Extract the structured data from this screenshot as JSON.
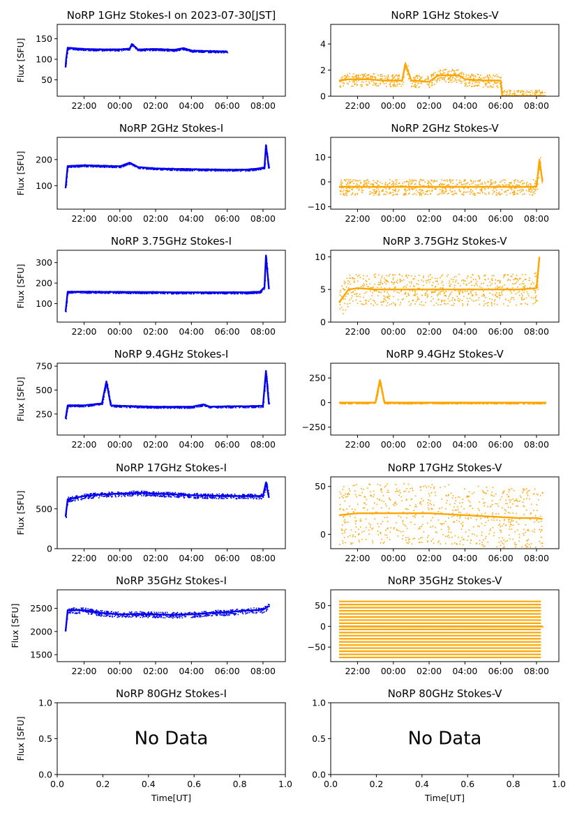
{
  "figure": {
    "x_ticks_time": [
      "22:00",
      "00:00",
      "02:00",
      "04:00",
      "06:00",
      "08:00"
    ],
    "x_ticks_nodata": [
      "0.0",
      "0.2",
      "0.4",
      "0.6",
      "0.8",
      "1.0"
    ],
    "x_label_bottom": "Time[UT]",
    "y_label_left": "Flux [SFU]",
    "no_data_text": "No Data",
    "colors": {
      "stokes_i": "#0000ee",
      "stokes_v": "#ffa500"
    }
  },
  "chart_data": [
    {
      "id": "p1-i",
      "type": "scatter",
      "title": "NoRP 1GHz Stokes-I on 2023-07-30[JST]",
      "ylabel": "Flux [SFU]",
      "yticks": [
        50,
        100,
        150
      ],
      "ylim": [
        10,
        185
      ],
      "xlim": [
        "20:30",
        "09:15"
      ],
      "color": "#0000ee",
      "series": [
        {
          "x": [
            "20:58",
            "21:00",
            "21:05",
            "21:20",
            "22:00",
            "23:00",
            "00:00",
            "00:33",
            "00:40",
            "01:00",
            "02:00",
            "03:00",
            "03:35",
            "04:00",
            "05:00",
            "06:00"
          ],
          "y": [
            80,
            100,
            128,
            127,
            125,
            124,
            124,
            126,
            137,
            124,
            125,
            123,
            127,
            121,
            120,
            119
          ]
        }
      ]
    },
    {
      "id": "p1-v",
      "type": "scatter",
      "title": "NoRP 1GHz Stokes-V",
      "ylabel": "",
      "yticks": [
        0,
        2,
        4
      ],
      "ylim": [
        0,
        5.5
      ],
      "xlim": [
        "20:30",
        "09:15"
      ],
      "color": "#ffa500",
      "series": [
        {
          "x": [
            "20:58",
            "21:30",
            "22:30",
            "23:30",
            "00:30",
            "00:40",
            "01:00",
            "02:00",
            "02:30",
            "03:00",
            "03:40",
            "04:00",
            "05:00",
            "06:00",
            "06:05",
            "08:30"
          ],
          "y": [
            1.2,
            1.3,
            1.3,
            1.2,
            1.2,
            2.5,
            1.2,
            1.1,
            1.6,
            1.6,
            1.6,
            1.3,
            1.2,
            1.2,
            0.02,
            0.02
          ]
        }
      ]
    },
    {
      "id": "p2-i",
      "type": "scatter",
      "title": "NoRP 2GHz Stokes-I",
      "ylabel": "Flux [SFU]",
      "yticks": [
        100,
        200
      ],
      "ylim": [
        10,
        285
      ],
      "xlim": [
        "20:30",
        "09:15"
      ],
      "color": "#0000ee",
      "series": [
        {
          "x": [
            "20:58",
            "21:05",
            "22:00",
            "23:00",
            "00:00",
            "00:33",
            "01:00",
            "02:00",
            "03:00",
            "04:00",
            "05:00",
            "06:00",
            "07:00",
            "07:40",
            "08:05",
            "08:10",
            "08:20"
          ],
          "y": [
            90,
            175,
            178,
            176,
            174,
            188,
            171,
            166,
            164,
            163,
            162,
            161,
            161,
            165,
            170,
            255,
            165
          ]
        }
      ]
    },
    {
      "id": "p2-v",
      "type": "scatter",
      "title": "NoRP 2GHz Stokes-V",
      "ylabel": "",
      "yticks": [
        -10,
        0,
        10
      ],
      "ylim": [
        -11,
        18
      ],
      "xlim": [
        "20:30",
        "09:15"
      ],
      "color": "#ffa500",
      "series": [
        {
          "x": [
            "20:58",
            "22:00",
            "23:00",
            "00:00",
            "01:00",
            "02:00",
            "03:00",
            "04:00",
            "05:00",
            "06:00",
            "07:00",
            "08:00",
            "08:10",
            "08:20"
          ],
          "y": [
            -2,
            -2,
            -2,
            -2,
            -2,
            -2,
            -2,
            -2,
            -2,
            -2,
            -2,
            -2,
            9,
            0
          ]
        }
      ]
    },
    {
      "id": "p3-i",
      "type": "scatter",
      "title": "NoRP 3.75GHz Stokes-I",
      "ylabel": "Flux [SFU]",
      "yticks": [
        100,
        200,
        300
      ],
      "ylim": [
        10,
        360
      ],
      "xlim": [
        "20:30",
        "09:15"
      ],
      "color": "#0000ee",
      "series": [
        {
          "x": [
            "20:58",
            "21:05",
            "22:00",
            "23:00",
            "00:00",
            "01:00",
            "02:00",
            "03:00",
            "04:00",
            "05:00",
            "06:00",
            "07:00",
            "07:50",
            "08:05",
            "08:10",
            "08:20"
          ],
          "y": [
            60,
            158,
            158,
            157,
            157,
            156,
            156,
            155,
            155,
            155,
            155,
            155,
            158,
            180,
            335,
            170
          ]
        }
      ]
    },
    {
      "id": "p3-v",
      "type": "scatter",
      "title": "NoRP 3.75GHz Stokes-V",
      "ylabel": "",
      "yticks": [
        0,
        5,
        10
      ],
      "ylim": [
        0,
        11
      ],
      "xlim": [
        "20:30",
        "09:15"
      ],
      "color": "#ffa500",
      "series": [
        {
          "x": [
            "20:58",
            "21:30",
            "22:00",
            "23:00",
            "00:00",
            "01:00",
            "02:00",
            "03:00",
            "04:00",
            "05:00",
            "06:00",
            "07:00",
            "08:00",
            "08:10"
          ],
          "y": [
            3,
            5,
            5.2,
            5,
            5,
            5,
            5,
            5,
            5,
            5,
            5,
            5,
            5.2,
            10
          ]
        }
      ]
    },
    {
      "id": "p4-i",
      "type": "scatter",
      "title": "NoRP 9.4GHz Stokes-I",
      "ylabel": "Flux [SFU]",
      "yticks": [
        250,
        500,
        750
      ],
      "ylim": [
        30,
        780
      ],
      "xlim": [
        "20:30",
        "09:15"
      ],
      "color": "#0000ee",
      "series": [
        {
          "x": [
            "20:58",
            "21:05",
            "22:00",
            "23:00",
            "23:15",
            "23:30",
            "00:00",
            "01:00",
            "02:00",
            "03:00",
            "04:00",
            "04:40",
            "05:00",
            "06:00",
            "07:00",
            "08:00",
            "08:10",
            "08:20"
          ],
          "y": [
            200,
            340,
            340,
            360,
            590,
            340,
            335,
            330,
            325,
            325,
            325,
            350,
            325,
            330,
            330,
            335,
            700,
            350
          ]
        }
      ]
    },
    {
      "id": "p4-v",
      "type": "scatter",
      "title": "NoRP 9.4GHz Stokes-V",
      "ylabel": "",
      "yticks": [
        -250,
        0,
        250
      ],
      "ylim": [
        -330,
        400
      ],
      "xlim": [
        "20:30",
        "09:15"
      ],
      "color": "#ffa500",
      "series": [
        {
          "x": [
            "20:58",
            "22:00",
            "23:00",
            "23:15",
            "23:30",
            "00:00",
            "01:00",
            "02:00",
            "03:00",
            "04:00",
            "05:00",
            "06:00",
            "07:00",
            "08:00",
            "08:30"
          ],
          "y": [
            0,
            0,
            0,
            230,
            0,
            0,
            0,
            0,
            0,
            0,
            0,
            0,
            0,
            0,
            0
          ]
        }
      ]
    },
    {
      "id": "p5-i",
      "type": "scatter",
      "title": "NoRP 17GHz Stokes-I",
      "ylabel": "Flux [SFU]",
      "yticks": [
        0,
        500
      ],
      "ylim": [
        0,
        900
      ],
      "xlim": [
        "20:30",
        "09:15"
      ],
      "color": "#0000ee",
      "series": [
        {
          "x": [
            "20:58",
            "21:05",
            "22:00",
            "23:00",
            "00:00",
            "01:00",
            "02:00",
            "03:00",
            "04:00",
            "05:00",
            "06:00",
            "07:00",
            "08:00",
            "08:10",
            "08:20"
          ],
          "y": [
            400,
            620,
            660,
            680,
            690,
            700,
            690,
            680,
            670,
            665,
            660,
            660,
            660,
            830,
            640
          ]
        }
      ]
    },
    {
      "id": "p5-v",
      "type": "scatter",
      "title": "NoRP 17GHz Stokes-V",
      "ylabel": "",
      "yticks": [
        0,
        50
      ],
      "ylim": [
        -15,
        60
      ],
      "xlim": [
        "20:30",
        "09:15"
      ],
      "color": "#ffa500",
      "series": [
        {
          "x": [
            "20:58",
            "22:00",
            "23:00",
            "00:00",
            "01:00",
            "02:00",
            "03:00",
            "04:00",
            "05:00",
            "06:00",
            "07:00",
            "08:00",
            "08:20"
          ],
          "y": [
            20,
            22,
            22,
            22,
            22,
            22,
            21,
            20,
            19,
            18,
            17,
            17,
            16
          ]
        }
      ]
    },
    {
      "id": "p6-i",
      "type": "scatter",
      "title": "NoRP 35GHz Stokes-I",
      "ylabel": "Flux [SFU]",
      "yticks": [
        1500,
        2000,
        2500
      ],
      "ylim": [
        1350,
        2900
      ],
      "xlim": [
        "20:30",
        "09:15"
      ],
      "color": "#0000ee",
      "series": [
        {
          "x": [
            "20:58",
            "21:05",
            "22:00",
            "23:00",
            "00:00",
            "01:00",
            "02:00",
            "03:00",
            "04:00",
            "05:00",
            "06:00",
            "07:00",
            "08:00",
            "08:20"
          ],
          "y": [
            2000,
            2460,
            2460,
            2400,
            2370,
            2380,
            2370,
            2360,
            2370,
            2400,
            2420,
            2450,
            2470,
            2550
          ]
        }
      ]
    },
    {
      "id": "p6-v",
      "type": "scatter",
      "title": "NoRP 35GHz Stokes-V",
      "ylabel": "",
      "yticks": [
        -50,
        0,
        50
      ],
      "ylim": [
        -85,
        88
      ],
      "xlim": [
        "20:30",
        "09:15"
      ],
      "color": "#ffa500",
      "series": [
        {
          "x": [
            "20:58",
            "22:00",
            "23:00",
            "00:00",
            "01:00",
            "02:00",
            "03:00",
            "04:00",
            "05:00",
            "06:00",
            "07:00",
            "08:00",
            "08:20"
          ],
          "y": [
            0,
            0,
            0,
            0,
            0,
            0,
            0,
            0,
            0,
            0,
            0,
            0,
            0
          ]
        }
      ]
    },
    {
      "id": "p7-i",
      "type": "scatter",
      "title": "NoRP 80GHz Stokes-I",
      "ylabel": "Flux [SFU]",
      "xlabel": "Time[UT]",
      "yticks": [
        0.0,
        0.5,
        1.0
      ],
      "ylim": [
        0,
        1
      ],
      "xticks": [
        0.0,
        0.2,
        0.4,
        0.6,
        0.8,
        1.0
      ],
      "xlim": [
        0,
        1
      ],
      "color": "#0000ee",
      "annotation": "No Data",
      "series": []
    },
    {
      "id": "p7-v",
      "type": "scatter",
      "title": "NoRP 80GHz Stokes-V",
      "ylabel": "",
      "xlabel": "Time[UT]",
      "yticks": [
        0.0,
        0.5,
        1.0
      ],
      "ylim": [
        0,
        1
      ],
      "xticks": [
        0.0,
        0.2,
        0.4,
        0.6,
        0.8,
        1.0
      ],
      "xlim": [
        0,
        1
      ],
      "color": "#ffa500",
      "annotation": "No Data",
      "series": []
    }
  ]
}
